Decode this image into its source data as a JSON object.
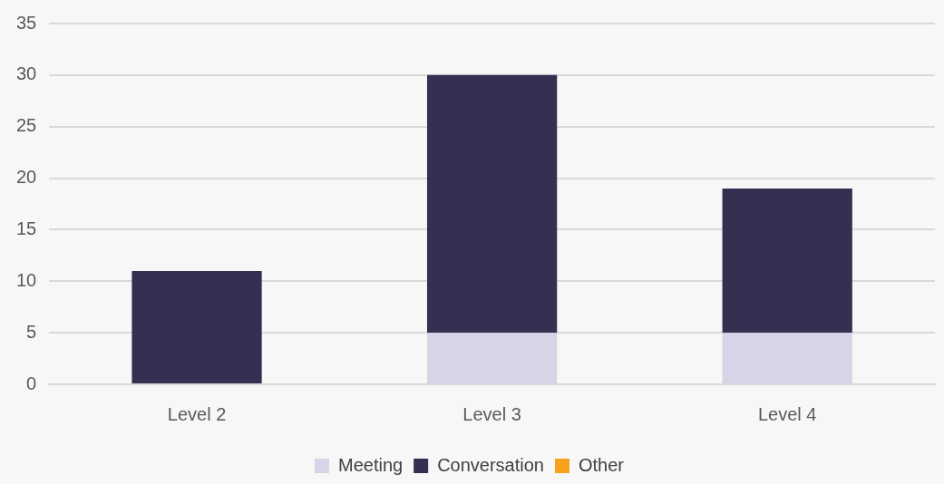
{
  "chart_data": {
    "type": "bar",
    "stacked": true,
    "categories": [
      "Level 2",
      "Level 3",
      "Level 4"
    ],
    "series": [
      {
        "name": "Meeting",
        "color": "#d8d4e7",
        "values": [
          0,
          5,
          5
        ]
      },
      {
        "name": "Conversation",
        "color": "#352f52",
        "values": [
          11,
          25,
          14
        ]
      },
      {
        "name": "Other",
        "color": "#f7a11a",
        "values": [
          0,
          0,
          0
        ]
      }
    ],
    "ylim": [
      0,
      35
    ],
    "yticks": [
      0,
      5,
      10,
      15,
      20,
      25,
      30,
      35
    ],
    "grid": "y",
    "legend": "bottom"
  }
}
